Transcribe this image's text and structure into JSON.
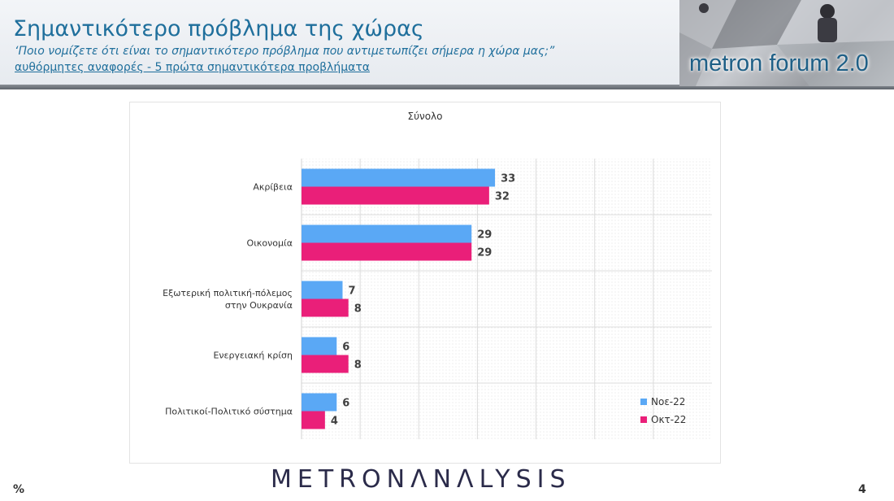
{
  "header": {
    "title": "Σημαντικότερο πρόβλημα της χώρας",
    "question": "‘Ποιο νομίζετε ότι  είναι το σημαντικότερο πρόβλημα που αντιμετωπίζει σήμερα η χώρα μας;”",
    "note": "αυθόρμητες αναφορές - 5 πρώτα σημαντικότερα προβλήματα",
    "logo_text": "metron forum 2.0"
  },
  "footer": {
    "brand_part1": "METRON",
    "brand_part2": "ΛNΛLYSIS",
    "unit": "%",
    "page_number": "4"
  },
  "chart_data": {
    "type": "bar",
    "orientation": "horizontal",
    "title": "Σύνολο",
    "categories": [
      [
        "Ακρίβεια"
      ],
      [
        "Οικονομία"
      ],
      [
        "Εξωτερική πολιτική-πόλεμος",
        "στην Ουκρανία"
      ],
      [
        "Ενεργειακή κρίση"
      ],
      [
        "Πολιτικοί-Πολιτικό σύστημα"
      ]
    ],
    "series": [
      {
        "name": "Νοε-22",
        "color": "#5aa8f5",
        "values": [
          33,
          29,
          7,
          6,
          6
        ]
      },
      {
        "name": "Οκτ-22",
        "color": "#ea1f79",
        "values": [
          32,
          29,
          8,
          8,
          4
        ]
      }
    ],
    "xlim": [
      0,
      70
    ],
    "grid": true,
    "legend_position": "bottom-right",
    "data_labels": true
  }
}
